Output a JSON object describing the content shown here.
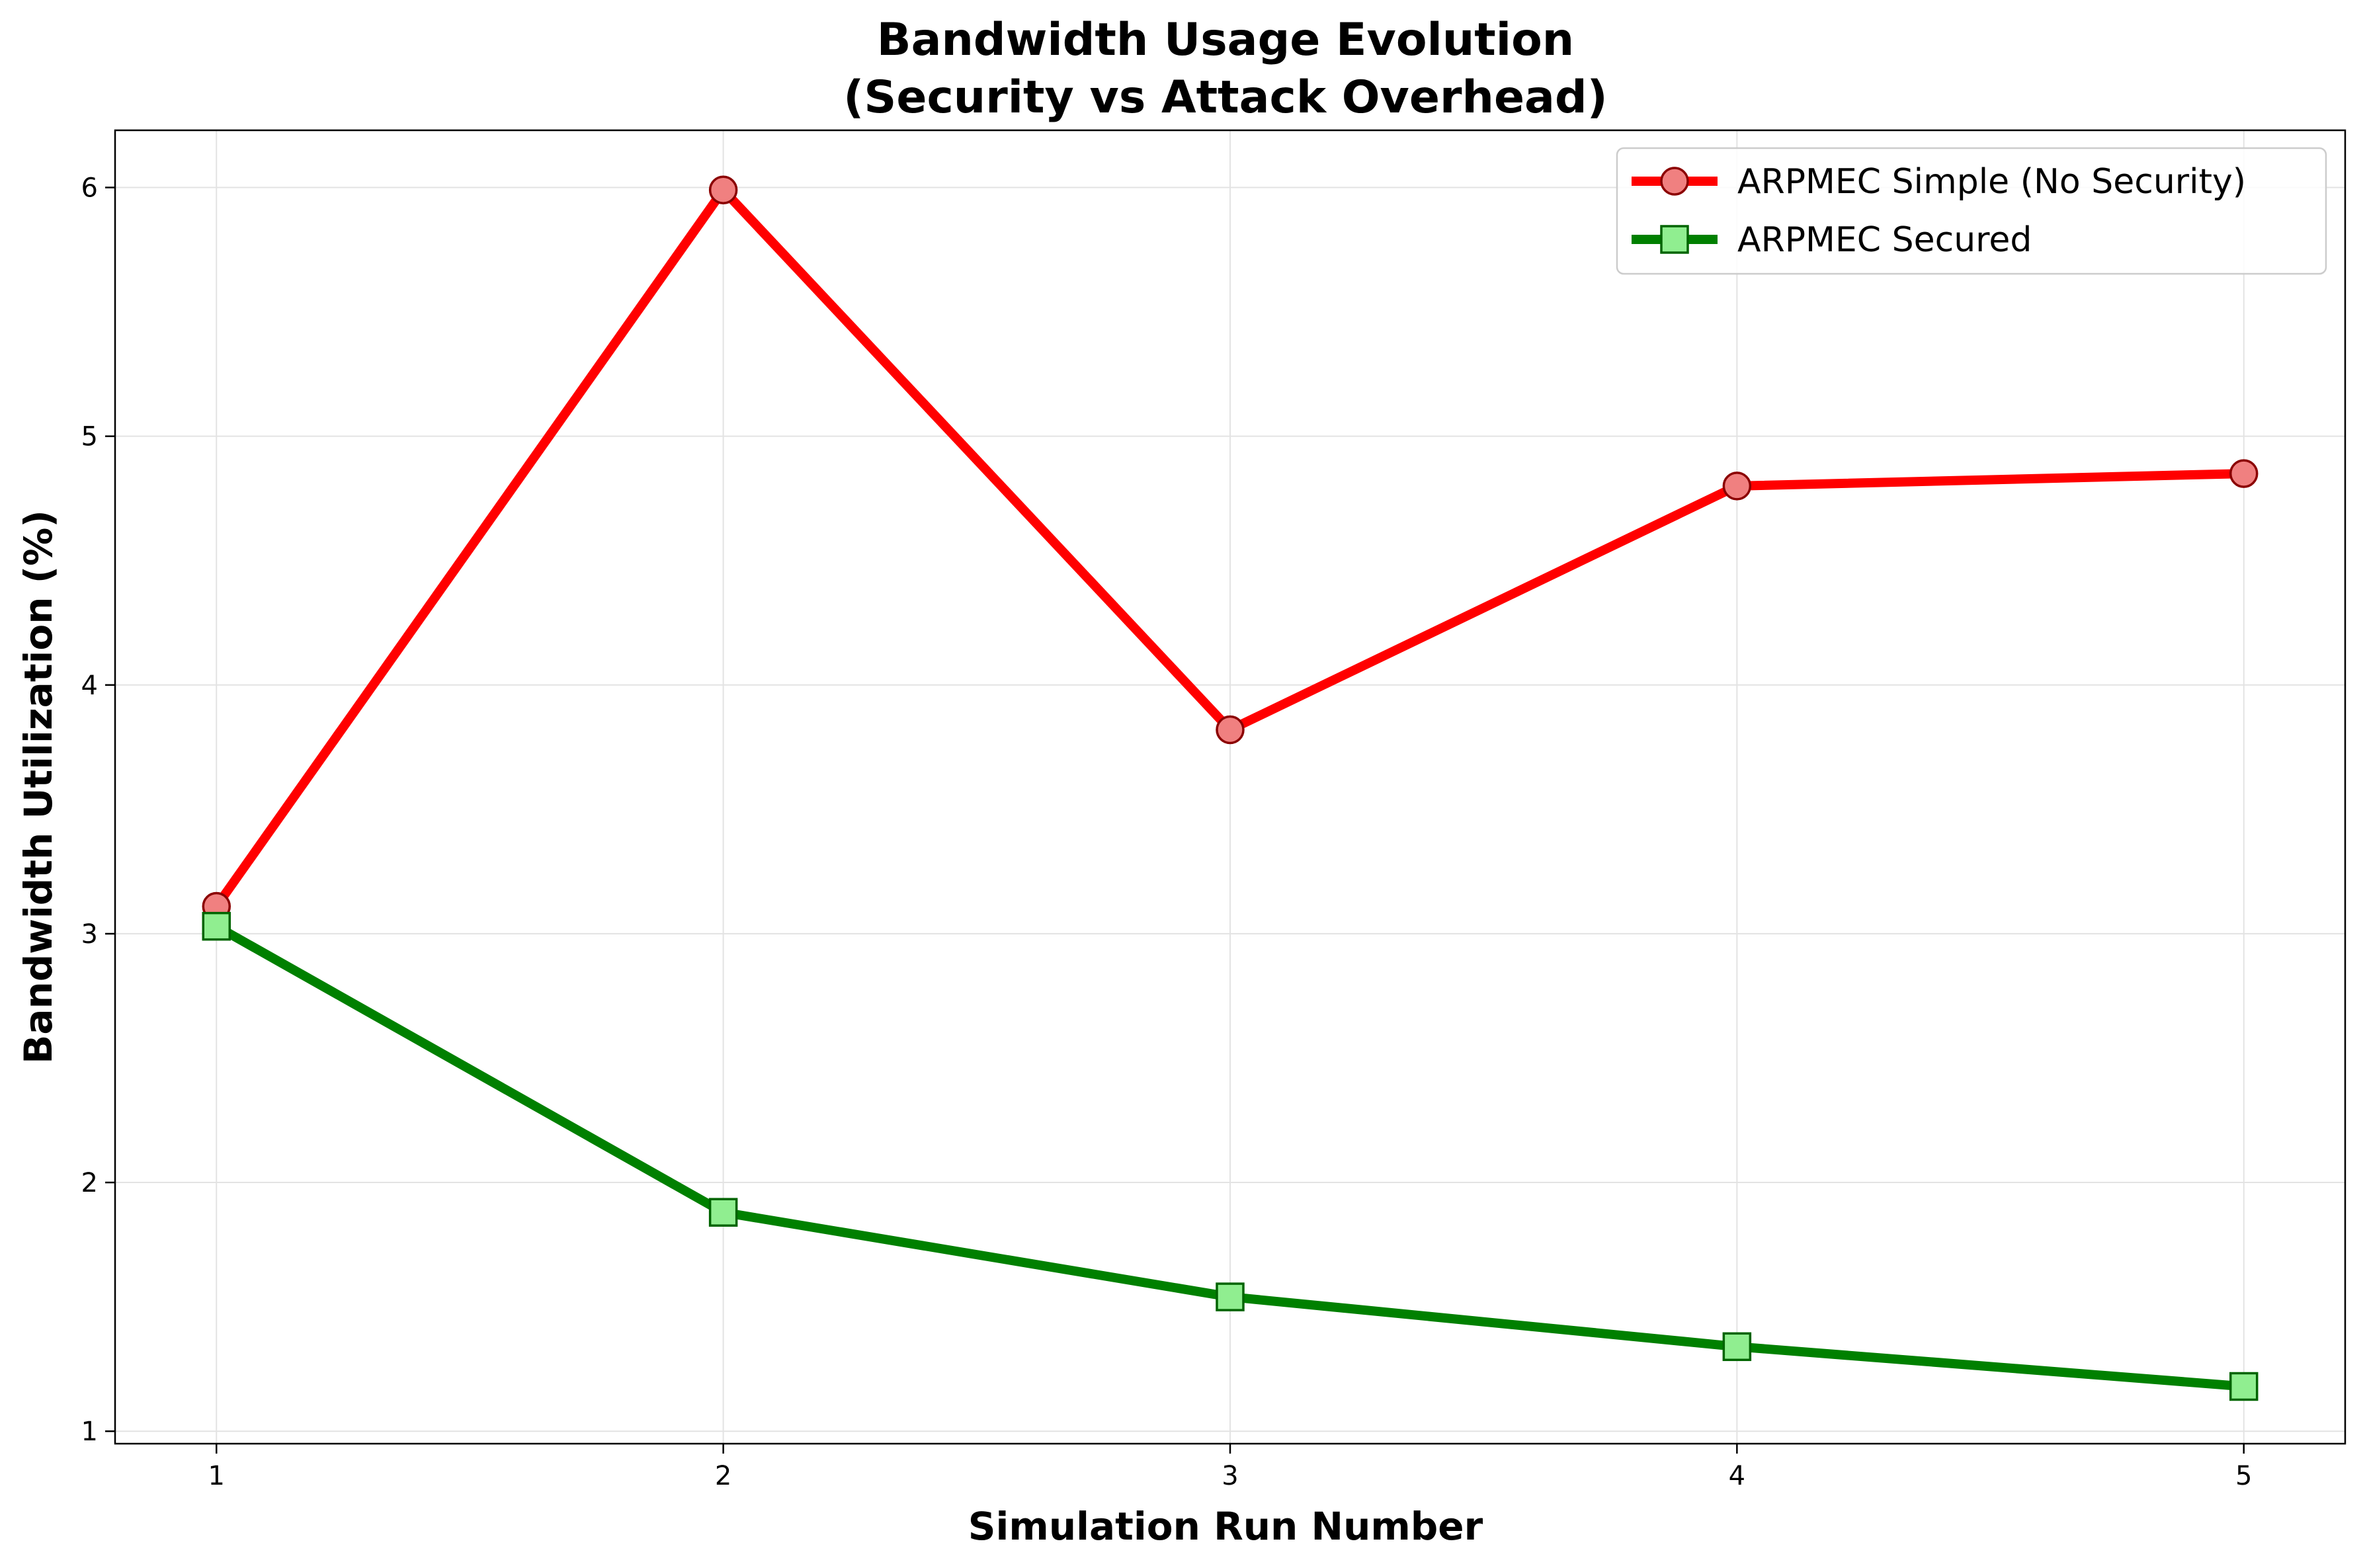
{
  "chart_data": {
    "type": "line",
    "title": [
      "Bandwidth Usage Evolution",
      "(Security vs Attack Overhead)"
    ],
    "xlabel": "Simulation Run Number",
    "ylabel": "Bandwidth Utilization (%)",
    "x": [
      1,
      2,
      3,
      4,
      5
    ],
    "xticks": [
      1,
      2,
      3,
      4,
      5
    ],
    "yticks": [
      1,
      2,
      3,
      4,
      5,
      6
    ],
    "xlim": [
      0.8,
      5.2
    ],
    "ylim": [
      0.95,
      6.23
    ],
    "grid": true,
    "legend_position": "top-right",
    "series": [
      {
        "name": "ARPMEC Simple (No Security)",
        "values": [
          3.11,
          5.99,
          3.82,
          4.8,
          4.85
        ],
        "line_color": "#ff0000",
        "marker": "circle",
        "marker_fill": "#f08080",
        "marker_edge": "#8b0000"
      },
      {
        "name": "ARPMEC Secured",
        "values": [
          3.03,
          1.88,
          1.54,
          1.34,
          1.18
        ],
        "line_color": "#008000",
        "marker": "square",
        "marker_fill": "#90ee90",
        "marker_edge": "#006400"
      }
    ]
  }
}
